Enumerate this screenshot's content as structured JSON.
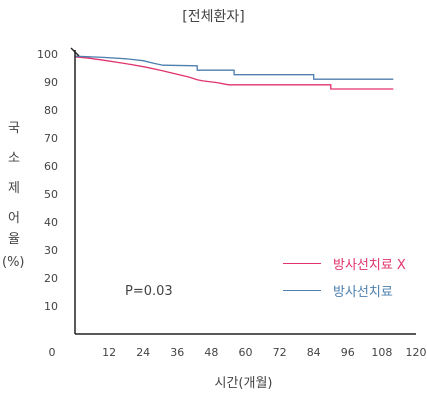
{
  "chart_data": {
    "type": "line",
    "title": "[전체환자]",
    "xlabel": "시간(개월)",
    "ylabel_chars": [
      "국",
      "소",
      "제",
      "어",
      "율",
      "(%)"
    ],
    "annotation": "P=0.03",
    "xlim": [
      0,
      120
    ],
    "ylim": [
      0,
      100
    ],
    "x_ticks": [
      "0",
      "12",
      "24",
      "36",
      "48",
      "60",
      "72",
      "84",
      "96",
      "108",
      "120"
    ],
    "y_ticks": [
      "10",
      "20",
      "30",
      "40",
      "50",
      "60",
      "70",
      "80",
      "90",
      "100"
    ],
    "grid": false,
    "legend_position": "right",
    "series": [
      {
        "name": "방사선치료 X",
        "color": "#e0336b",
        "step": false,
        "points": [
          [
            0,
            99
          ],
          [
            5,
            98.5
          ],
          [
            10,
            97.8
          ],
          [
            15,
            97
          ],
          [
            20,
            96.2
          ],
          [
            25,
            95.3
          ],
          [
            30,
            94.2
          ],
          [
            35,
            93
          ],
          [
            40,
            91.8
          ],
          [
            43,
            90.8
          ],
          [
            45,
            90.4
          ],
          [
            50,
            89.8
          ],
          [
            54,
            89
          ],
          [
            56,
            89
          ],
          [
            90,
            89
          ],
          [
            90,
            87.5
          ],
          [
            112,
            87.5
          ]
        ]
      },
      {
        "name": "방사선치료",
        "color": "#4e7fae",
        "step": true,
        "points": [
          [
            0,
            99.2
          ],
          [
            10,
            98.8
          ],
          [
            18,
            98.3
          ],
          [
            24,
            97.6
          ],
          [
            28,
            96.6
          ],
          [
            31,
            96
          ],
          [
            43,
            95.8
          ],
          [
            43,
            94.2
          ],
          [
            56,
            94.2
          ],
          [
            56,
            92.6
          ],
          [
            84,
            92.6
          ],
          [
            84,
            91
          ],
          [
            112,
            91
          ]
        ]
      }
    ]
  }
}
